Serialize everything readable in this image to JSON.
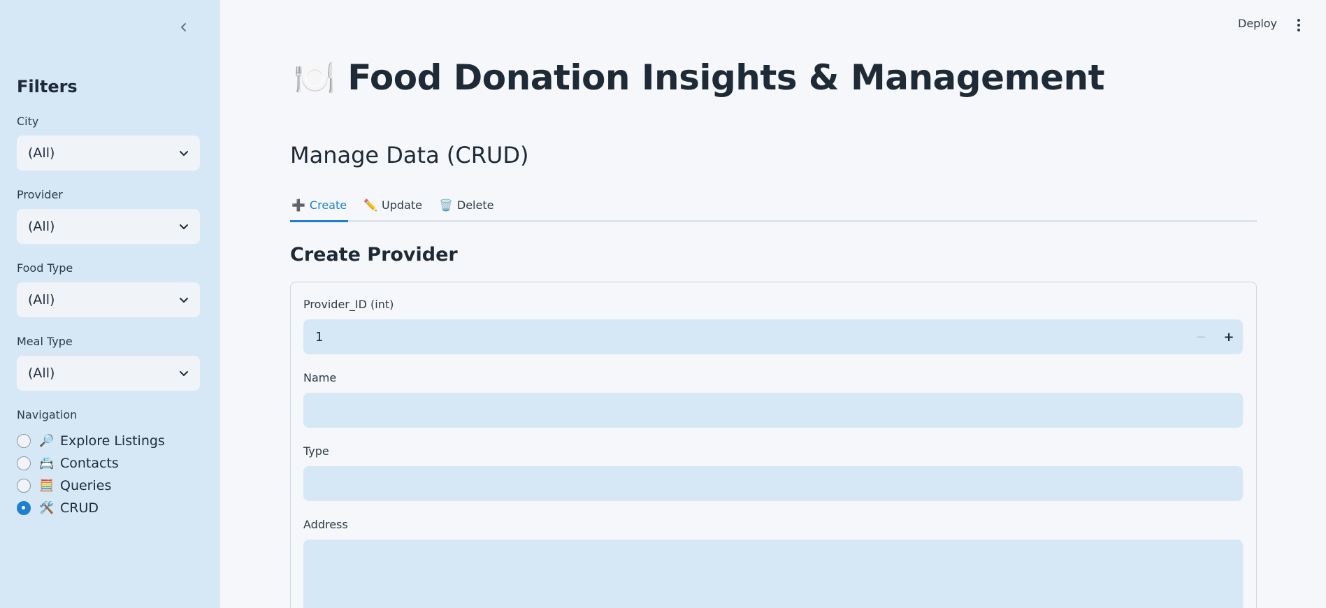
{
  "sidebar": {
    "title": "Filters",
    "filters": [
      {
        "label": "City",
        "value": "(All)"
      },
      {
        "label": "Provider",
        "value": "(All)"
      },
      {
        "label": "Food Type",
        "value": "(All)"
      },
      {
        "label": "Meal Type",
        "value": "(All)"
      }
    ],
    "navigation": {
      "label": "Navigation",
      "items": [
        {
          "emoji": "🔎",
          "label": "Explore Listings",
          "selected": false
        },
        {
          "emoji": "📇",
          "label": "Contacts",
          "selected": false
        },
        {
          "emoji": "🧮",
          "label": "Queries",
          "selected": false
        },
        {
          "emoji": "🛠️",
          "label": "CRUD",
          "selected": true
        }
      ]
    }
  },
  "header": {
    "deploy_label": "Deploy"
  },
  "main": {
    "title_emoji": "🍽️",
    "title": "Food Donation Insights & Management",
    "section_title": "Manage Data (CRUD)",
    "tabs": [
      {
        "icon": "➕",
        "label": "Create",
        "active": true
      },
      {
        "icon": "✏️",
        "label": "Update",
        "active": false
      },
      {
        "icon": "🗑️",
        "label": "Delete",
        "active": false
      }
    ],
    "form_title": "Create Provider",
    "fields": [
      {
        "label": "Provider_ID (int)",
        "value": "1",
        "type": "number"
      },
      {
        "label": "Name",
        "value": ""
      },
      {
        "label": "Type",
        "value": ""
      },
      {
        "label": "Address",
        "value": ""
      }
    ]
  },
  "colors": {
    "sidebar_bg": "#d6e8f5",
    "accent": "#1f7fd0",
    "page_bg": "#f5f7fa"
  }
}
